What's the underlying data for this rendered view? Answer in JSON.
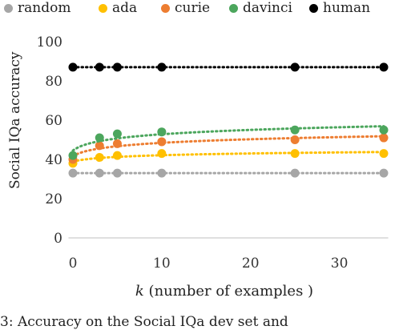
{
  "chart_data": {
    "type": "scatter",
    "title": "",
    "ylabel": "Social IQa accuracy",
    "xlabel_k": "k",
    "xlabel_rest": " (number of examples )",
    "xlim": [
      -0.5,
      35.5
    ],
    "ylim": [
      0,
      100
    ],
    "xticks": [
      0,
      10,
      20,
      30
    ],
    "yticks": [
      0,
      20,
      40,
      60,
      80,
      100
    ],
    "legend_position": "top",
    "x": [
      0,
      3,
      5,
      10,
      25,
      35
    ],
    "series": [
      {
        "name": "random",
        "color": "#a6a6a6",
        "values": [
          33,
          33,
          33,
          33,
          33,
          33
        ]
      },
      {
        "name": "ada",
        "color": "#ffc000",
        "values": [
          38,
          41,
          42,
          43,
          43,
          43
        ]
      },
      {
        "name": "curie",
        "color": "#ed7d31",
        "values": [
          40,
          47,
          48,
          49,
          50,
          51
        ]
      },
      {
        "name": "davinci",
        "color": "#4ca65d",
        "values": [
          42,
          51,
          53,
          54,
          55,
          55
        ]
      },
      {
        "name": "human",
        "color": "#000000",
        "values": [
          87,
          87,
          87,
          87,
          87,
          87
        ]
      }
    ]
  },
  "caption": "3: Accuracy on the Social IQa dev set and"
}
